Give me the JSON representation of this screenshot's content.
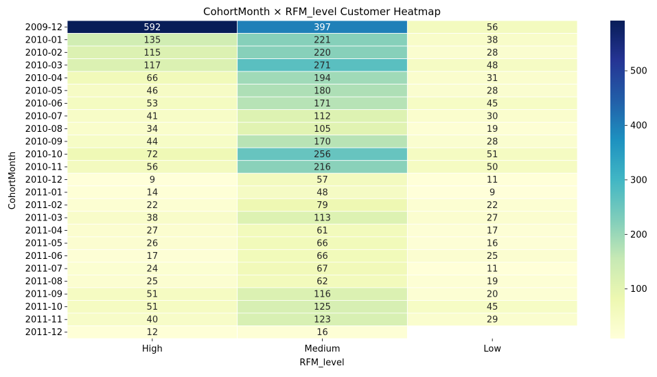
{
  "chart_data": {
    "type": "heatmap",
    "title": "CohortMonth × RFM_level Customer Heatmap",
    "xlabel": "RFM_level",
    "ylabel": "CohortMonth",
    "x_categories": [
      "High",
      "Medium",
      "Low"
    ],
    "y_categories": [
      "2009-12",
      "2010-01",
      "2010-02",
      "2010-03",
      "2010-04",
      "2010-05",
      "2010-06",
      "2010-07",
      "2010-08",
      "2010-09",
      "2010-10",
      "2010-11",
      "2010-12",
      "2011-01",
      "2011-02",
      "2011-03",
      "2011-04",
      "2011-05",
      "2011-06",
      "2011-07",
      "2011-08",
      "2011-09",
      "2011-10",
      "2011-11",
      "2011-12"
    ],
    "values": [
      [
        592,
        397,
        56
      ],
      [
        135,
        221,
        38
      ],
      [
        115,
        220,
        28
      ],
      [
        117,
        271,
        48
      ],
      [
        66,
        194,
        31
      ],
      [
        46,
        180,
        28
      ],
      [
        53,
        171,
        45
      ],
      [
        41,
        112,
        30
      ],
      [
        34,
        105,
        19
      ],
      [
        44,
        170,
        28
      ],
      [
        72,
        256,
        51
      ],
      [
        56,
        216,
        50
      ],
      [
        9,
        57,
        11
      ],
      [
        14,
        48,
        9
      ],
      [
        22,
        79,
        22
      ],
      [
        38,
        113,
        27
      ],
      [
        27,
        61,
        17
      ],
      [
        26,
        66,
        16
      ],
      [
        17,
        66,
        25
      ],
      [
        24,
        67,
        11
      ],
      [
        25,
        62,
        19
      ],
      [
        51,
        116,
        20
      ],
      [
        51,
        125,
        45
      ],
      [
        40,
        123,
        29
      ],
      [
        12,
        16,
        null
      ]
    ],
    "colormap": "YlGnBu",
    "color_range": [
      9,
      592
    ],
    "colorbar_ticks": [
      "100",
      "200",
      "300",
      "400",
      "500"
    ],
    "annotations": true,
    "grid": false,
    "colors": {
      "low": "#ffffd9",
      "high": "#081d58"
    }
  }
}
